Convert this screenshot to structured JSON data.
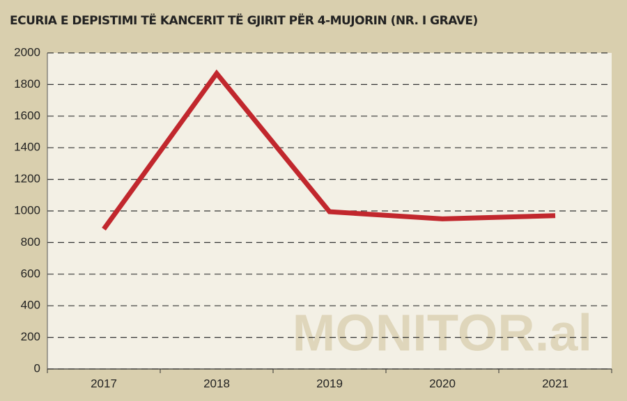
{
  "chart_data": {
    "type": "line",
    "title": "ECURIA E DEPISTIMI TË KANCERIT TË GJIRIT PËR 4-MUJORIN (NR. I GRAVE)",
    "watermark": "MONITOR.al",
    "categories": [
      "2017",
      "2018",
      "2019",
      "2020",
      "2021"
    ],
    "values": [
      885,
      1870,
      995,
      950,
      970
    ],
    "color": "#c1272d",
    "ylim": [
      0,
      2000
    ],
    "yticks": [
      0,
      200,
      400,
      600,
      800,
      1000,
      1200,
      1400,
      1600,
      1800,
      2000
    ],
    "grid": true
  }
}
